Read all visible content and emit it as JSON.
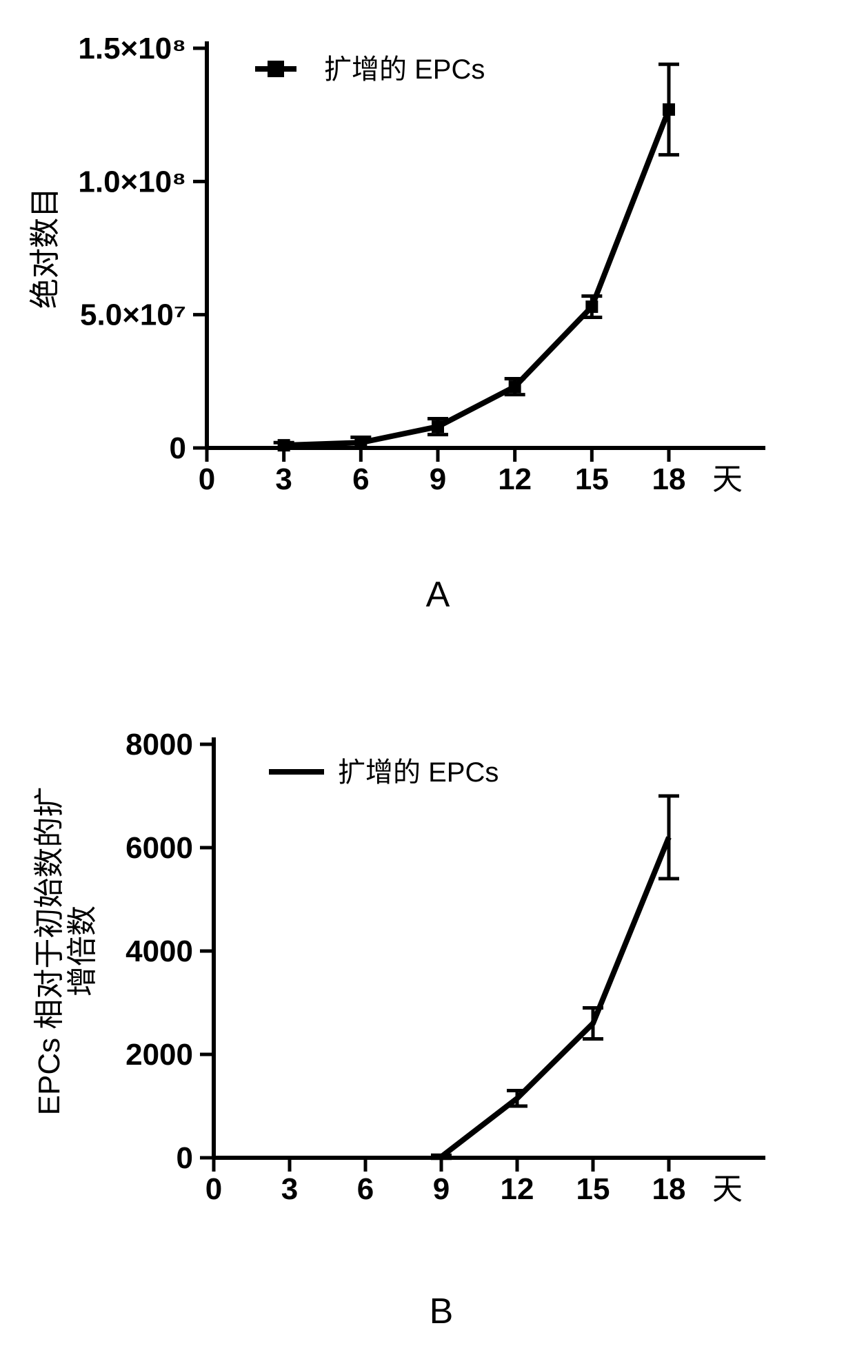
{
  "chart_a": {
    "type": "line",
    "panel_label": "A",
    "legend_label": "扩增的 EPCs",
    "legend_marker": "square",
    "ylabel": "绝对数目",
    "xlabel": "天",
    "x_ticks": [
      0,
      3,
      6,
      9,
      12,
      15,
      18
    ],
    "y_ticks": [
      {
        "v": 0,
        "label": "0"
      },
      {
        "v": 50000000.0,
        "label": "5.0×10⁷"
      },
      {
        "v": 100000000.0,
        "label": "1.0×10⁸"
      },
      {
        "v": 150000000.0,
        "label": "1.5×10⁸"
      }
    ],
    "xlim": [
      0,
      18
    ],
    "ylim": [
      0,
      150000000.0
    ],
    "points": [
      {
        "x": 3,
        "y": 1000000.0,
        "err": 1000000.0
      },
      {
        "x": 6,
        "y": 2000000.0,
        "err": 2000000.0
      },
      {
        "x": 9,
        "y": 8000000.0,
        "err": 3000000.0
      },
      {
        "x": 12,
        "y": 23000000.0,
        "err": 3000000.0
      },
      {
        "x": 15,
        "y": 53000000.0,
        "err": 4000000.0
      },
      {
        "x": 18,
        "y": 127000000.0,
        "err": 17000000.0
      }
    ],
    "line_color": "#000000",
    "line_width": 8,
    "marker_color": "#000000",
    "marker_size": 18,
    "errorbar_width": 5,
    "errorbar_cap": 30,
    "background_color": "#ffffff",
    "tick_fontsize": 44,
    "tick_fontweight": "bold",
    "label_fontsize": 44,
    "panel_label_fontsize": 52
  },
  "chart_b": {
    "type": "line",
    "panel_label": "B",
    "legend_label": "扩增的 EPCs",
    "legend_marker": "line",
    "ylabel": "EPCs 相对于初始数的扩\n增倍数",
    "xlabel": "天",
    "x_ticks": [
      0,
      3,
      6,
      9,
      12,
      15,
      18
    ],
    "y_ticks": [
      {
        "v": 0,
        "label": "0"
      },
      {
        "v": 2000,
        "label": "2000"
      },
      {
        "v": 4000,
        "label": "4000"
      },
      {
        "v": 6000,
        "label": "6000"
      },
      {
        "v": 8000,
        "label": "8000"
      }
    ],
    "xlim": [
      0,
      18
    ],
    "ylim": [
      0,
      8000
    ],
    "points": [
      {
        "x": 9,
        "y": 20,
        "err": 30
      },
      {
        "x": 12,
        "y": 1150,
        "err": 150
      },
      {
        "x": 15,
        "y": 2600,
        "err": 300
      },
      {
        "x": 18,
        "y": 6200,
        "err": 800
      }
    ],
    "line_color": "#000000",
    "line_width": 8,
    "marker_color": "#000000",
    "errorbar_width": 5,
    "errorbar_cap": 30,
    "background_color": "#ffffff",
    "tick_fontsize": 44,
    "tick_fontweight": "bold",
    "label_fontsize": 44,
    "panel_label_fontsize": 52
  }
}
